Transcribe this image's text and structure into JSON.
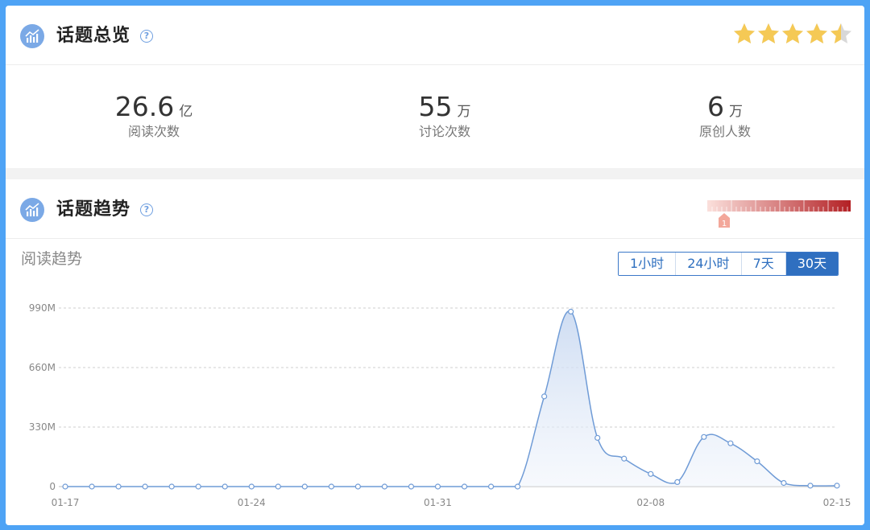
{
  "overview": {
    "title": "话题总览",
    "help": "?",
    "rating": 4.5,
    "stats": [
      {
        "value": "26.6",
        "unit": "亿",
        "label": "阅读次数"
      },
      {
        "value": "55",
        "unit": "万",
        "label": "讨论次数"
      },
      {
        "value": "6",
        "unit": "万",
        "label": "原创人数"
      }
    ]
  },
  "trend": {
    "title": "话题趋势",
    "help": "?",
    "heat_level": "1",
    "subtitle": "阅读趋势",
    "ranges": [
      "1小时",
      "24小时",
      "7天",
      "30天"
    ],
    "active_range": "30天"
  },
  "colors": {
    "accent": "#2f6fc0",
    "line": "#6f9bd6",
    "star": "#f5c955",
    "heat_low": "#fbe0dc",
    "heat_high": "#b32024"
  },
  "chart_data": {
    "type": "area",
    "title": "",
    "xlabel": "",
    "ylabel": "",
    "x": [
      "01-17",
      "01-18",
      "01-19",
      "01-20",
      "01-21",
      "01-22",
      "01-23",
      "01-24",
      "01-25",
      "01-26",
      "01-27",
      "01-28",
      "01-29",
      "01-30",
      "01-31",
      "02-01",
      "02-02",
      "02-03",
      "02-04",
      "02-05",
      "02-06",
      "02-07",
      "02-08",
      "02-09",
      "02-10",
      "02-11",
      "02-12",
      "02-13",
      "02-14",
      "02-15"
    ],
    "x_tick_labels": [
      "01-17",
      "01-24",
      "01-31",
      "02-08",
      "02-15"
    ],
    "values": [
      0,
      0,
      0,
      0,
      0,
      0,
      0,
      0,
      0,
      0,
      0,
      0,
      0,
      0,
      0,
      0,
      0,
      0,
      500,
      970,
      270,
      155,
      70,
      25,
      275,
      240,
      140,
      20,
      5,
      5
    ],
    "y_unit": "M",
    "y_ticks": [
      0,
      330,
      660,
      990
    ],
    "y_tick_labels": [
      "0",
      "330M",
      "660M",
      "990M"
    ],
    "ylim": [
      0,
      990
    ],
    "grid": true,
    "legend": "none"
  }
}
